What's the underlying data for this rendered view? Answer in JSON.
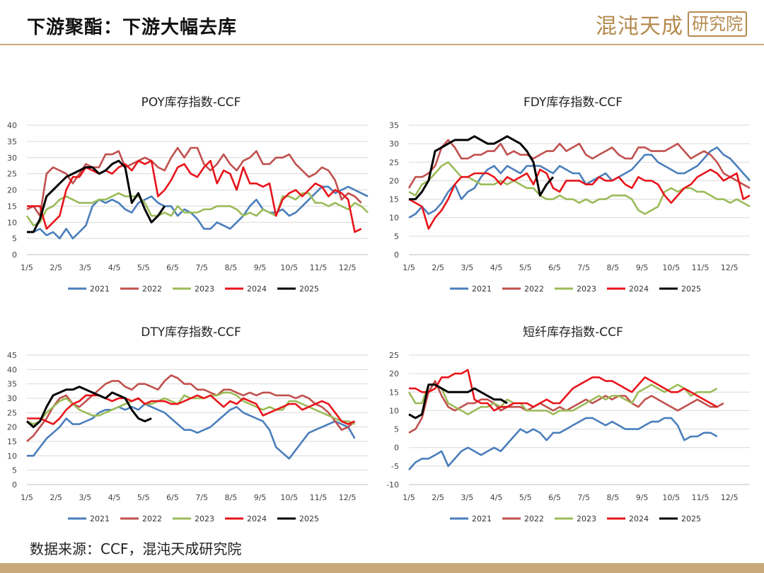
{
  "header": {
    "title": "下游聚酯：下游大幅去库",
    "logo_text": "混沌天成",
    "logo_stamp": "研究院"
  },
  "footer": {
    "source": "数据来源：CCF，混沌天成研究院"
  },
  "colors": {
    "2021": "#4a7ebb",
    "2022": "#c0504d",
    "2023": "#9bbb59",
    "2024": "#e8141b",
    "2025": "#000000",
    "grid": "#d9d9d9",
    "axis": "#bfbfbf"
  },
  "chart_data": [
    {
      "type": "line",
      "title": "POY库存指数-CCF",
      "xlabels": [
        "1/5",
        "2/5",
        "3/5",
        "4/5",
        "5/5",
        "6/5",
        "7/5",
        "8/5",
        "9/5",
        "10/5",
        "11/5",
        "12/5"
      ],
      "ylim": [
        0,
        40
      ],
      "yticks": [
        0,
        5,
        10,
        15,
        20,
        25,
        30,
        35,
        40
      ],
      "series": [
        {
          "name": "2021",
          "values": [
            7,
            7,
            8,
            6,
            7,
            5,
            8,
            5,
            7,
            9,
            15,
            17,
            16,
            17,
            16,
            14,
            13,
            16,
            17,
            18,
            16,
            15,
            15,
            12,
            14,
            13,
            11,
            8,
            8,
            10,
            9,
            8,
            10,
            12,
            15,
            17,
            14,
            13,
            13,
            14,
            12,
            13,
            15,
            17,
            19,
            21,
            21,
            19,
            20,
            21,
            20,
            19,
            18
          ]
        },
        {
          "name": "2022",
          "values": [
            14,
            15,
            12,
            25,
            27,
            26,
            25,
            22,
            25,
            28,
            27,
            27,
            31,
            31,
            32,
            27,
            28,
            29,
            30,
            29,
            27,
            26,
            30,
            33,
            30,
            33,
            33,
            28,
            26,
            28,
            31,
            28,
            26,
            29,
            30,
            32,
            28,
            28,
            30,
            30,
            31,
            28,
            26,
            24,
            25,
            27,
            26,
            23,
            17,
            19,
            18,
            16
          ]
        },
        {
          "name": "2023",
          "values": [
            12,
            9,
            10,
            14,
            15,
            17,
            18,
            17,
            16,
            16,
            16,
            17,
            17,
            18,
            19,
            18,
            18,
            18,
            16,
            12,
            12,
            13,
            12,
            15,
            13,
            13,
            13,
            14,
            14,
            15,
            15,
            15,
            14,
            12,
            13,
            12,
            14,
            13,
            12,
            18,
            18,
            17,
            19,
            19,
            16,
            16,
            15,
            16,
            15,
            14,
            16,
            15,
            13
          ]
        },
        {
          "name": "2024",
          "values": [
            15,
            15,
            15,
            8,
            10,
            12,
            20,
            24,
            24,
            27,
            26,
            25,
            26,
            25,
            27,
            28,
            26,
            29,
            28,
            29,
            18,
            20,
            23,
            27,
            28,
            25,
            24,
            27,
            29,
            22,
            26,
            25,
            20,
            27,
            22,
            22,
            21,
            22,
            12,
            17,
            19,
            20,
            18,
            20,
            22,
            21,
            18,
            20,
            19,
            17,
            7,
            8
          ]
        },
        {
          "name": "2025",
          "values": [
            7,
            7,
            11,
            18,
            20,
            22,
            24,
            25,
            26,
            27,
            27,
            25,
            26,
            28,
            29,
            27,
            16,
            19,
            14,
            10,
            12,
            15
          ]
        }
      ]
    },
    {
      "type": "line",
      "title": "FDY库存指数-CCF",
      "xlabels": [
        "1/5",
        "2/5",
        "3/5",
        "4/5",
        "5/5",
        "6/5",
        "7/5",
        "8/5",
        "9/5",
        "10/5",
        "11/5",
        "12/5"
      ],
      "ylim": [
        0,
        35
      ],
      "yticks": [
        0,
        5,
        10,
        15,
        20,
        25,
        30,
        35
      ],
      "series": [
        {
          "name": "2021",
          "values": [
            10,
            11,
            13,
            11,
            12,
            14,
            17,
            19,
            15,
            17,
            18,
            21,
            23,
            24,
            22,
            24,
            23,
            22,
            24,
            24,
            24,
            23,
            22,
            24,
            23,
            22,
            22,
            19,
            20,
            21,
            22,
            20,
            21,
            22,
            23,
            25,
            27,
            27,
            25,
            24,
            23,
            22,
            22,
            23,
            24,
            26,
            28,
            29,
            27,
            26,
            24,
            22,
            20
          ]
        },
        {
          "name": "2022",
          "values": [
            18,
            21,
            21,
            22,
            24,
            29,
            31,
            29,
            26,
            26,
            27,
            27,
            28,
            28,
            30,
            27,
            28,
            27,
            27,
            26,
            27,
            28,
            28,
            30,
            28,
            29,
            30,
            27,
            26,
            27,
            28,
            29,
            27,
            26,
            26,
            29,
            29,
            28,
            28,
            28,
            29,
            30,
            28,
            26,
            27,
            28,
            27,
            25,
            22,
            21,
            20,
            19,
            18
          ]
        },
        {
          "name": "2023",
          "values": [
            17,
            16,
            19,
            20,
            22,
            24,
            25,
            23,
            21,
            21,
            20,
            19,
            19,
            19,
            20,
            19,
            20,
            19,
            18,
            18,
            16,
            15,
            15,
            16,
            15,
            15,
            14,
            15,
            14,
            15,
            15,
            16,
            16,
            16,
            15,
            12,
            11,
            12,
            13,
            17,
            18,
            17,
            18,
            18,
            17,
            17,
            16,
            15,
            15,
            14,
            15,
            14,
            13
          ]
        },
        {
          "name": "2024",
          "values": [
            15,
            14,
            13,
            7,
            10,
            12,
            15,
            19,
            21,
            21,
            22,
            22,
            22,
            21,
            19,
            21,
            20,
            21,
            22,
            19,
            23,
            22,
            18,
            17,
            20,
            20,
            20,
            19,
            19,
            21,
            20,
            20,
            21,
            19,
            18,
            21,
            20,
            20,
            19,
            16,
            14,
            16,
            18,
            19,
            21,
            22,
            23,
            22,
            20,
            21,
            22,
            15,
            16
          ]
        },
        {
          "name": "2025",
          "values": [
            15,
            15,
            17,
            20,
            28,
            29,
            30,
            31,
            31,
            31,
            32,
            31,
            30,
            30,
            31,
            32,
            31,
            30,
            28,
            25,
            16,
            19,
            21
          ]
        }
      ]
    },
    {
      "type": "line",
      "title": "DTY库存指数-CCF",
      "xlabels": [
        "1/5",
        "2/5",
        "3/5",
        "4/5",
        "5/5",
        "6/5",
        "7/5",
        "8/5",
        "9/5",
        "10/5",
        "11/5",
        "12/5"
      ],
      "ylim": [
        0,
        45
      ],
      "yticks": [
        0,
        5,
        10,
        15,
        20,
        25,
        30,
        35,
        40,
        45
      ],
      "series": [
        {
          "name": "2021",
          "values": [
            10,
            10,
            13,
            16,
            18,
            20,
            23,
            21,
            21,
            22,
            23,
            25,
            26,
            26,
            27,
            26,
            27,
            26,
            28,
            27,
            26,
            25,
            23,
            21,
            19,
            19,
            18,
            19,
            20,
            22,
            24,
            26,
            27,
            25,
            24,
            23,
            22,
            19,
            13,
            11,
            9,
            12,
            15,
            18,
            19,
            20,
            21,
            22,
            21,
            20,
            16
          ]
        },
        {
          "name": "2022",
          "values": [
            15,
            17,
            20,
            23,
            27,
            30,
            31,
            28,
            27,
            29,
            31,
            33,
            35,
            36,
            36,
            34,
            33,
            35,
            35,
            34,
            33,
            36,
            38,
            37,
            35,
            35,
            33,
            33,
            32,
            31,
            33,
            33,
            32,
            31,
            32,
            31,
            32,
            32,
            31,
            31,
            31,
            30,
            31,
            30,
            28,
            27,
            25,
            22,
            19,
            20,
            22
          ]
        },
        {
          "name": "2023",
          "values": [
            22,
            21,
            22,
            25,
            27,
            29,
            30,
            28,
            26,
            25,
            24,
            24,
            25,
            26,
            27,
            28,
            29,
            30,
            28,
            28,
            29,
            30,
            29,
            28,
            31,
            30,
            30,
            30,
            31,
            31,
            32,
            32,
            31,
            29,
            28,
            27,
            26,
            27,
            26,
            26,
            29,
            29,
            28,
            27,
            26,
            25,
            24,
            23,
            22,
            22,
            21
          ]
        },
        {
          "name": "2024",
          "values": [
            23,
            23,
            23,
            22,
            21,
            23,
            26,
            28,
            29,
            31,
            31,
            31,
            30,
            29,
            30,
            30,
            29,
            30,
            28,
            29,
            29,
            29,
            28,
            28,
            29,
            30,
            31,
            30,
            31,
            29,
            27,
            29,
            28,
            30,
            29,
            28,
            24,
            25,
            26,
            27,
            28,
            28,
            26,
            27,
            28,
            29,
            28,
            25,
            22,
            21,
            22
          ]
        },
        {
          "name": "2025",
          "values": [
            22,
            20,
            22,
            27,
            31,
            32,
            33,
            33,
            34,
            33,
            32,
            31,
            30,
            32,
            31,
            30,
            26,
            23,
            22,
            23
          ]
        }
      ]
    },
    {
      "type": "line",
      "title": "短纤库存指数-CCF",
      "xlabels": [
        "1/5",
        "2/5",
        "3/5",
        "4/5",
        "5/5",
        "6/5",
        "7/5",
        "8/5",
        "9/5",
        "10/5",
        "11/5",
        "12/5"
      ],
      "ylim": [
        -10,
        25
      ],
      "yticks": [
        -10,
        -5,
        0,
        5,
        10,
        15,
        20,
        25
      ],
      "series": [
        {
          "name": "2021",
          "values": [
            -6,
            -4,
            -3,
            -3,
            -2,
            -1,
            -5,
            -3,
            -1,
            0,
            -1,
            -2,
            -1,
            0,
            -1,
            1,
            3,
            5,
            4,
            5,
            4,
            2,
            4,
            4,
            5,
            6,
            7,
            8,
            8,
            7,
            6,
            7,
            6,
            5,
            5,
            5,
            6,
            7,
            7,
            8,
            8,
            6,
            2,
            3,
            3,
            4,
            4,
            3
          ]
        },
        {
          "name": "2022",
          "values": [
            4,
            5,
            8,
            15,
            18,
            14,
            11,
            10,
            11,
            12,
            12,
            13,
            13,
            12,
            10,
            11,
            11,
            11,
            10,
            11,
            12,
            11,
            10,
            11,
            10,
            11,
            12,
            13,
            12,
            13,
            14,
            13,
            14,
            14,
            12,
            11,
            13,
            14,
            13,
            12,
            11,
            10,
            11,
            12,
            13,
            12,
            11,
            11,
            12
          ]
        },
        {
          "name": "2023",
          "values": [
            15,
            12,
            12,
            17,
            17,
            16,
            12,
            11,
            10,
            9,
            10,
            11,
            11,
            12,
            11,
            13,
            12,
            12,
            10,
            10,
            10,
            10,
            9,
            10,
            10,
            10,
            11,
            12,
            13,
            14,
            13,
            14,
            14,
            13,
            12,
            15,
            16,
            17,
            16,
            15,
            16,
            17,
            16,
            14,
            15,
            15,
            15,
            16
          ]
        },
        {
          "name": "2024",
          "values": [
            16,
            16,
            15,
            15,
            16,
            19,
            19,
            20,
            20,
            21,
            13,
            12,
            12,
            10,
            11,
            11,
            12,
            12,
            12,
            11,
            12,
            13,
            12,
            12,
            14,
            16,
            17,
            18,
            19,
            19,
            18,
            18,
            17,
            16,
            15,
            17,
            19,
            18,
            17,
            16,
            15,
            15,
            16,
            15,
            14,
            13,
            12,
            11
          ]
        },
        {
          "name": "2025",
          "values": [
            9,
            8,
            9,
            17,
            17,
            16,
            15,
            15,
            15,
            15,
            16,
            15,
            14,
            13,
            13,
            12
          ]
        }
      ]
    }
  ]
}
